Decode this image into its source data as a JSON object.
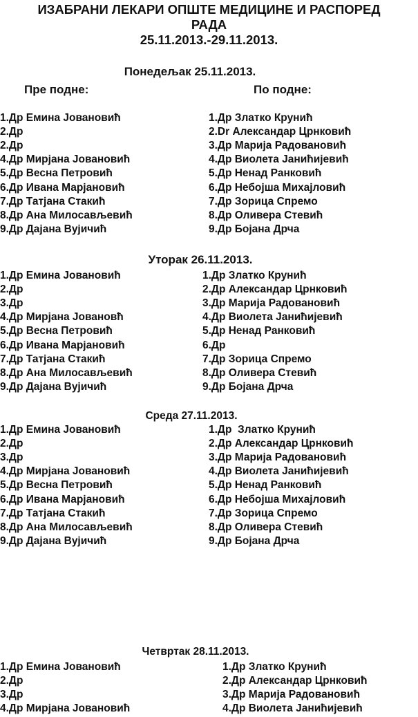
{
  "document": {
    "title_line1": "ИЗАБРАНИ ЛЕКАРИ ОПШТЕ МЕДИЦИНЕ И РАСПОРЕД",
    "title_line2": "РАДА",
    "date_range": "25.11.2013.-29.11.2013.",
    "morning_label": "Пре подне:",
    "afternoon_label": "По подне:",
    "days": [
      {
        "heading": "Понедељак 25.11.2013.",
        "left": [
          "1.Др Емина Јовановић",
          "2.Др",
          "2.Др",
          "4.Др Мирјана Јовановић",
          "5.Др Весна Петровић",
          "6.Др Ивана Марјановић",
          "7.Др Татјана Стакић",
          "8.Др Ана Милосављевић",
          "9.Др Дајана Вујичић"
        ],
        "right": [
          "1.Др Златко Крунић",
          "2.Dr Александар Црнковић",
          "3.Др Марија Радовановић",
          "4.Др Виолета Јанићијевић",
          "5.Др Ненад Ранковић",
          "6.Др Небојша Михајловић",
          "7.Др Зорица Спремо",
          "8.Др Оливера Стевић",
          "9.Др Бојана Дрча"
        ]
      },
      {
        "heading": "Уторак 26.11.2013.",
        "left": [
          "1.Др Емина Јовановић",
          "2.Др",
          "3.Др",
          "4.Др Мирјана Јовановћ",
          "5.Др Весна Петровић",
          "6.Др Ивана Марјановић",
          "7.Др Татјана Стакић",
          "8.Др Ана Милосављевић",
          "9.Др Дајана Вујичић"
        ],
        "right": [
          "1.Др Златко Крунић",
          "2.Др Александар Црнковић",
          "3.Др Марија Радовановић",
          "4.Др Виолета Јанићијевић",
          "5.Др Ненад Ранковић",
          "6.Др",
          "7.Др Зорица Спремо",
          "8.Др Оливера Стевић",
          "9.Др Бојана Дрча"
        ]
      },
      {
        "heading": "Среда 27.11.2013.",
        "left": [
          "1.Др Емина Јовановић",
          "2.Др",
          "3.Др",
          "4.Др Мирјана Јовановић",
          "5.Др Весна Петровић",
          "6.Др Ивана Марјановић",
          "7.Др Татјана Стакић",
          "8.Др Ана Милосављевић",
          "9.Др Дајана Вујичић"
        ],
        "right": [
          "1.Др  Златко Крунић",
          "2.Др Александар Црнковић",
          "3.Др Марија Радовановић",
          "4.Др Виолета Јанићијевић",
          "5.Др Ненад Ранковић",
          "6.Др Небојша Михајловић",
          "7.Др Зорица Спремо",
          "8.Др Оливера Стевић",
          "9.Др Бојана Дрча"
        ]
      },
      {
        "heading": "Четвртак 28.11.2013.",
        "left": [
          "1.Др Емина Јовановић",
          "2.Др",
          "3.Др",
          "4.Др Мирјана Јовановић"
        ],
        "right": [
          "1.Др Златко Крунић",
          "2.Др Александар Црнковић",
          "3.Др Марија Радовановић",
          "4.Др Виолета Јанићијевић"
        ]
      }
    ]
  }
}
